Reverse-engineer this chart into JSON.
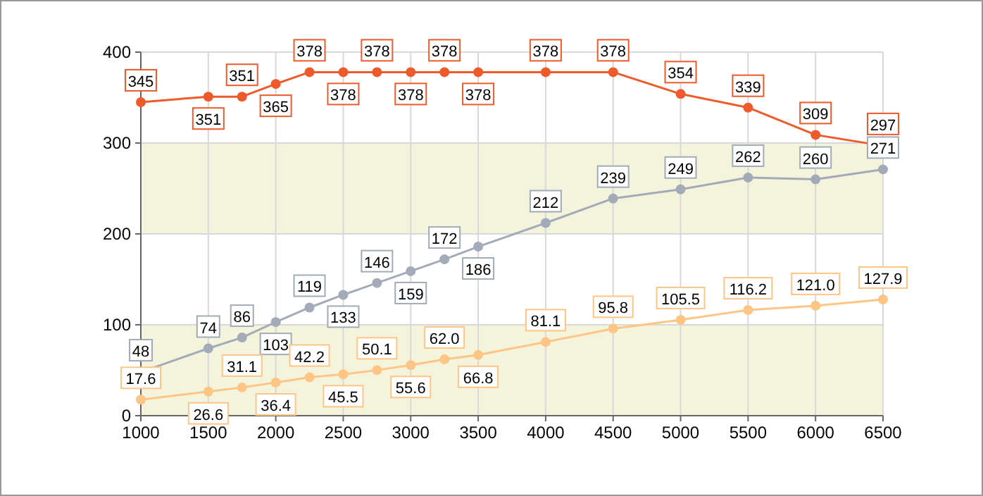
{
  "chart_data": {
    "type": "line",
    "x": [
      1000,
      1500,
      1750,
      2000,
      2250,
      2500,
      2750,
      3000,
      3250,
      3500,
      4000,
      4500,
      5000,
      5500,
      6000,
      6500
    ],
    "series": [
      {
        "color": "#ee5a2a",
        "values": [
          345,
          351,
          351,
          365,
          378,
          378,
          378,
          378,
          378,
          378,
          378,
          378,
          354,
          339,
          309,
          297
        ]
      },
      {
        "color": "#a3abb8",
        "values": [
          48,
          74,
          86,
          103,
          119,
          133,
          146,
          159,
          172,
          186,
          212,
          239,
          249,
          262,
          260,
          271
        ]
      },
      {
        "color": "#ffc585",
        "values": [
          17.6,
          26.6,
          31.1,
          36.4,
          42.2,
          45.5,
          50.1,
          55.6,
          62,
          66.8,
          81.1,
          95.8,
          105.5,
          116.2,
          121,
          127.9
        ],
        "value_labels": [
          "17.6",
          "26.6",
          "31.1",
          "36.4",
          "42.2",
          "45.5",
          "50.1",
          "55.6",
          "62.0",
          "66.8",
          "81.1",
          "95.8",
          "105.5",
          "116.2",
          "121.0",
          "127.9"
        ]
      }
    ],
    "data_labels": true,
    "marker": "circle",
    "grid": true,
    "xlim": [
      1000,
      6500
    ],
    "xticks": [
      1000,
      1500,
      2000,
      2500,
      3000,
      3500,
      4000,
      4500,
      5000,
      5500,
      6000,
      6500
    ],
    "ylim": [
      0,
      400
    ],
    "yticks": [
      0,
      100,
      200,
      300,
      400
    ],
    "bands": [
      {
        "axis": "y",
        "from": 0,
        "to": 100,
        "color": "#f4f4dc"
      },
      {
        "axis": "y",
        "from": 200,
        "to": 300,
        "color": "#f4f4dc"
      }
    ]
  }
}
